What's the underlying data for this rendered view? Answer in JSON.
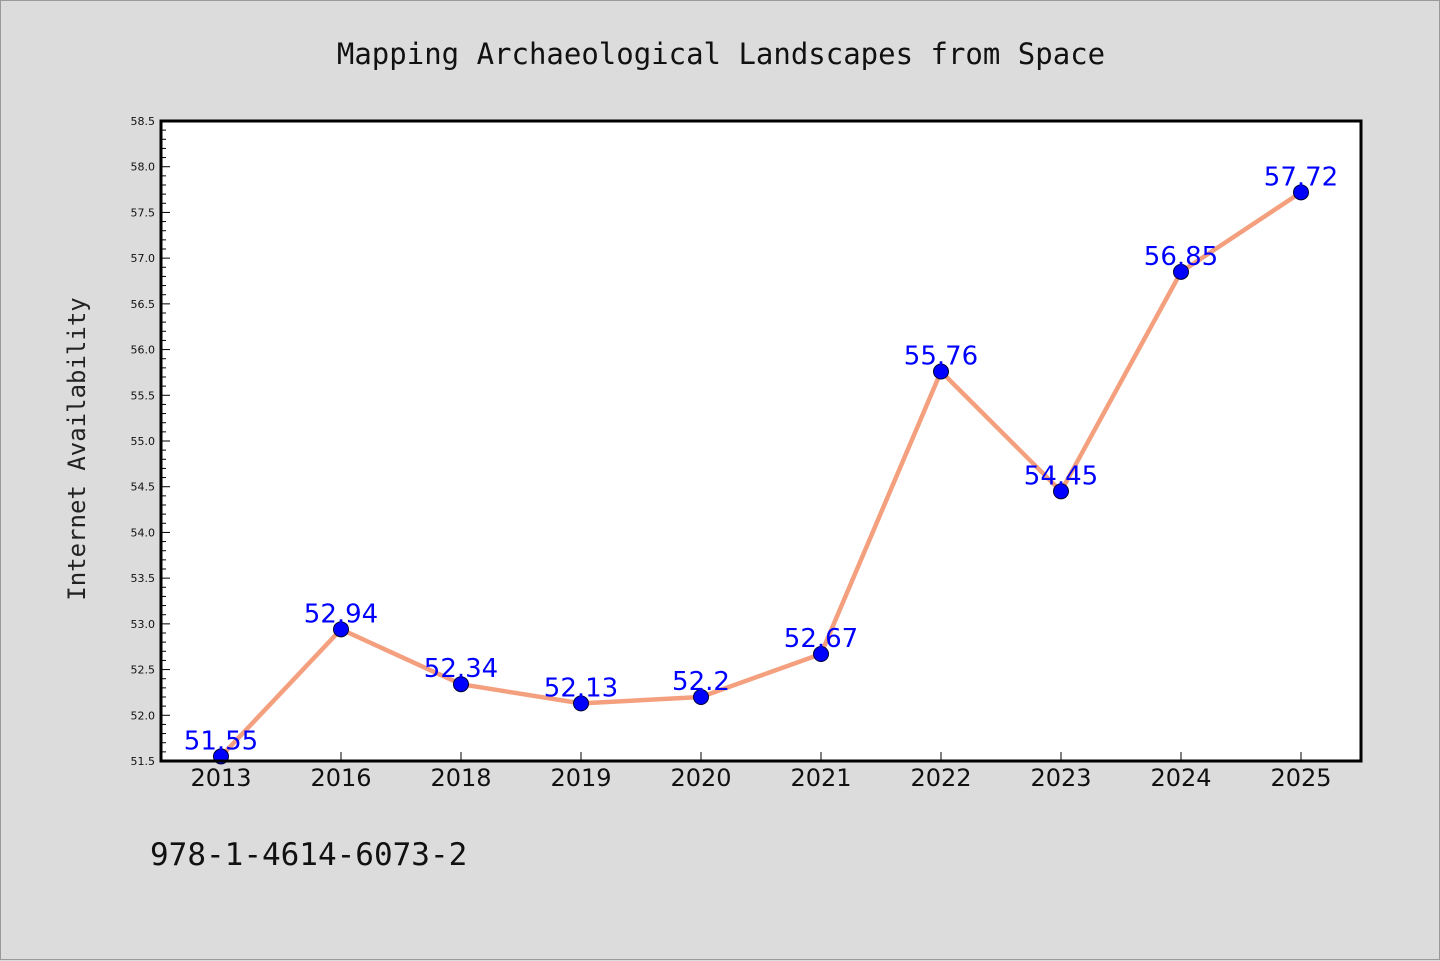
{
  "chart_data": {
    "type": "line",
    "title": "Mapping Archaeological Landscapes from Space",
    "xlabel": "",
    "ylabel": "Internet Availability",
    "categories": [
      "2013",
      "2016",
      "2018",
      "2019",
      "2020",
      "2021",
      "2022",
      "2023",
      "2024",
      "2025"
    ],
    "series": [
      {
        "values": [
          51.55,
          52.94,
          52.34,
          52.13,
          52.2,
          52.67,
          55.76,
          54.45,
          56.85,
          57.72
        ],
        "labels": [
          "51.55",
          "52.94",
          "52.34",
          "52.13",
          "52.2",
          "52.67",
          "55.76",
          "54.45",
          "56.85",
          "57.72"
        ]
      }
    ],
    "ylim": [
      51.5,
      58.5
    ],
    "yticks": [
      "51.5",
      "52.0",
      "52.5",
      "53.0",
      "53.5",
      "54.0",
      "54.5",
      "55.0",
      "55.5",
      "56.0",
      "56.5",
      "57.0",
      "57.5",
      "58.0",
      "58.5"
    ],
    "grid": false,
    "line_color": "#f4a07e",
    "marker_color": "#0000ff",
    "label_color": "#0000ff",
    "background_color": "#dcdcdc",
    "plot_background_color": "#ffffff"
  },
  "annotation": "978-1-4614-6073-2"
}
